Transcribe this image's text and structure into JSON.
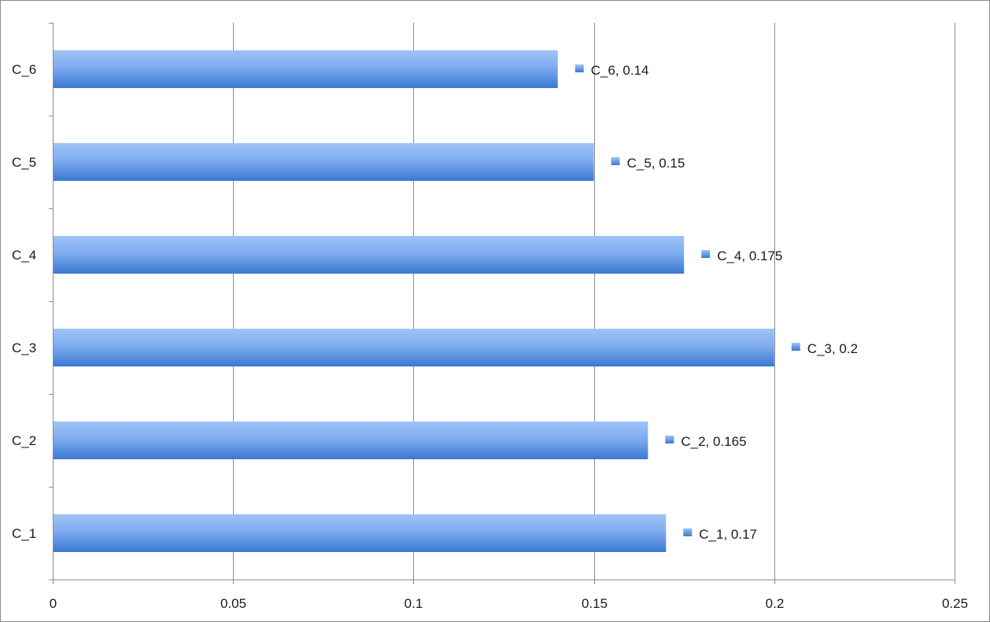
{
  "chart_data": {
    "type": "bar",
    "orientation": "horizontal",
    "title": "",
    "xlabel": "",
    "ylabel": "",
    "categories": [
      "C_1",
      "C_2",
      "C_3",
      "C_4",
      "C_5",
      "C_6"
    ],
    "values": [
      0.17,
      0.165,
      0.2,
      0.175,
      0.15,
      0.14
    ],
    "data_labels": [
      "C_1, 0.17",
      "C_2, 0.165",
      "C_3, 0.2",
      "C_4, 0.175",
      "C_5, 0.15",
      "C_6, 0.14"
    ],
    "xlim": [
      0,
      0.25
    ],
    "x_ticks": [
      0,
      0.05,
      0.1,
      0.15,
      0.2,
      0.25
    ],
    "x_tick_labels": [
      "0",
      "0.05",
      "0.1",
      "0.15",
      "0.2",
      "0.25"
    ],
    "grid": "vertical",
    "legend": "none",
    "colors": {
      "bar_light": "#9ec3f7",
      "bar_mid": "#6b9ee8",
      "bar_dark": "#3a78d1",
      "grid": "#8c8c8c",
      "axis": "#8c8c8c",
      "border": "#8c8c8c"
    }
  }
}
